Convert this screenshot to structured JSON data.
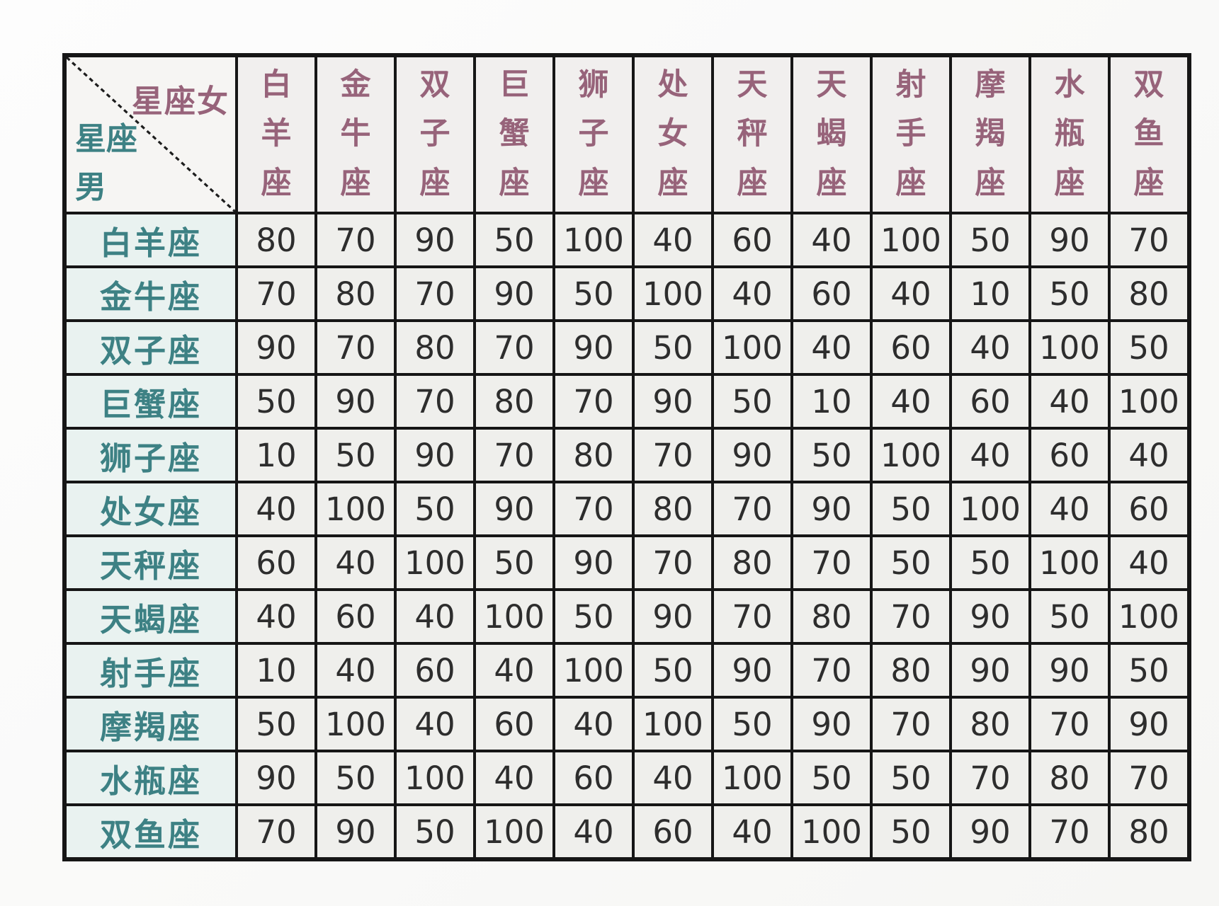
{
  "table": {
    "corner": {
      "female_label": "星座女",
      "male_label_line1": "星座",
      "male_label_line2": "男"
    },
    "column_headers": [
      "白羊座",
      "金牛座",
      "双子座",
      "巨蟹座",
      "狮子座",
      "处女座",
      "天秤座",
      "天蝎座",
      "射手座",
      "摩羯座",
      "水瓶座",
      "双鱼座"
    ],
    "row_headers": [
      "白羊座",
      "金牛座",
      "双子座",
      "巨蟹座",
      "狮子座",
      "处女座",
      "天秤座",
      "天蝎座",
      "射手座",
      "摩羯座",
      "水瓶座",
      "双鱼座"
    ],
    "rows": [
      [
        80,
        70,
        90,
        50,
        100,
        40,
        60,
        40,
        100,
        50,
        90,
        70
      ],
      [
        70,
        80,
        70,
        90,
        50,
        100,
        40,
        60,
        40,
        10,
        50,
        80
      ],
      [
        90,
        70,
        80,
        70,
        90,
        50,
        100,
        40,
        60,
        40,
        100,
        50
      ],
      [
        50,
        90,
        70,
        80,
        70,
        90,
        50,
        10,
        40,
        60,
        40,
        100
      ],
      [
        10,
        50,
        90,
        70,
        80,
        70,
        90,
        50,
        100,
        40,
        60,
        40
      ],
      [
        40,
        100,
        50,
        90,
        70,
        80,
        70,
        90,
        50,
        100,
        40,
        60
      ],
      [
        60,
        40,
        100,
        50,
        90,
        70,
        80,
        70,
        50,
        50,
        100,
        40
      ],
      [
        40,
        60,
        40,
        100,
        50,
        90,
        70,
        80,
        70,
        90,
        50,
        100
      ],
      [
        10,
        40,
        60,
        40,
        100,
        50,
        90,
        70,
        80,
        90,
        90,
        50
      ],
      [
        50,
        100,
        40,
        60,
        40,
        100,
        50,
        90,
        70,
        80,
        70,
        90
      ],
      [
        90,
        50,
        100,
        40,
        60,
        40,
        100,
        50,
        50,
        70,
        80,
        70
      ],
      [
        70,
        90,
        50,
        100,
        40,
        60,
        40,
        100,
        50,
        90,
        70,
        80
      ]
    ]
  },
  "colors": {
    "column_header_text": "#97637a",
    "row_header_text": "#3d8184",
    "value_text": "#2d2d2d",
    "grid_line": "#161616"
  },
  "chart_data": {
    "type": "table",
    "title": "",
    "corner_labels": {
      "columns_axis": "星座女",
      "rows_axis": "星座男"
    },
    "columns": [
      "白羊座",
      "金牛座",
      "双子座",
      "巨蟹座",
      "狮子座",
      "处女座",
      "天秤座",
      "天蝎座",
      "射手座",
      "摩羯座",
      "水瓶座",
      "双鱼座"
    ],
    "rows": [
      "白羊座",
      "金牛座",
      "双子座",
      "巨蟹座",
      "狮子座",
      "处女座",
      "天秤座",
      "天蝎座",
      "射手座",
      "摩羯座",
      "水瓶座",
      "双鱼座"
    ],
    "values": [
      [
        80,
        70,
        90,
        50,
        100,
        40,
        60,
        40,
        100,
        50,
        90,
        70
      ],
      [
        70,
        80,
        70,
        90,
        50,
        100,
        40,
        60,
        40,
        10,
        50,
        80
      ],
      [
        90,
        70,
        80,
        70,
        90,
        50,
        100,
        40,
        60,
        40,
        100,
        50
      ],
      [
        50,
        90,
        70,
        80,
        70,
        90,
        50,
        10,
        40,
        60,
        40,
        100
      ],
      [
        10,
        50,
        90,
        70,
        80,
        70,
        90,
        50,
        100,
        40,
        60,
        40
      ],
      [
        40,
        100,
        50,
        90,
        70,
        80,
        70,
        90,
        50,
        100,
        40,
        60
      ],
      [
        60,
        40,
        100,
        50,
        90,
        70,
        80,
        70,
        50,
        50,
        100,
        40
      ],
      [
        40,
        60,
        40,
        100,
        50,
        90,
        70,
        80,
        70,
        90,
        50,
        100
      ],
      [
        10,
        40,
        60,
        40,
        100,
        50,
        90,
        70,
        80,
        90,
        90,
        50
      ],
      [
        50,
        100,
        40,
        60,
        40,
        100,
        50,
        90,
        70,
        80,
        70,
        90
      ],
      [
        90,
        50,
        100,
        40,
        60,
        40,
        100,
        50,
        50,
        70,
        80,
        70
      ],
      [
        70,
        90,
        50,
        100,
        40,
        60,
        40,
        100,
        50,
        90,
        70,
        80
      ]
    ]
  }
}
